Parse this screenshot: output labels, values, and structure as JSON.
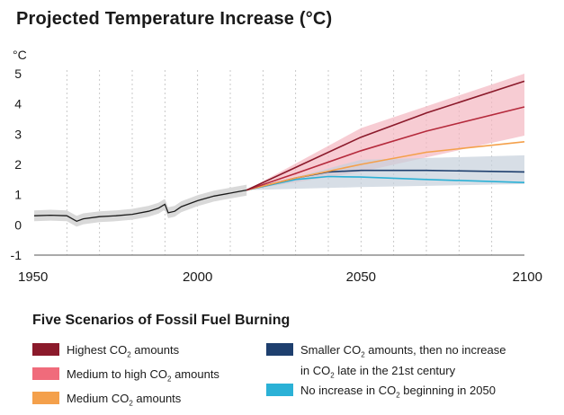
{
  "chart_data": {
    "type": "line",
    "title": "Projected Temperature Increase (°C)",
    "y_unit_label": "°C",
    "xlim": [
      1950,
      2100
    ],
    "ylim": [
      -1,
      5
    ],
    "x_ticks": [
      1950,
      2000,
      2050,
      2100
    ],
    "y_ticks": [
      -1,
      0,
      1,
      2,
      3,
      4,
      5
    ],
    "grid": "vertical-dashed",
    "historical": {
      "x": [
        1950,
        1955,
        1960,
        1963,
        1965,
        1970,
        1975,
        1980,
        1985,
        1988,
        1990,
        1991,
        1993,
        1995,
        2000,
        2005,
        2010,
        2015
      ],
      "y": [
        0.3,
        0.32,
        0.3,
        0.12,
        0.2,
        0.27,
        0.3,
        0.35,
        0.45,
        0.55,
        0.68,
        0.4,
        0.45,
        0.6,
        0.8,
        0.95,
        1.05,
        1.15
      ],
      "band": 0.18
    },
    "series": [
      {
        "name": "Highest CO2 amounts",
        "color": "#8b1a2b",
        "x": [
          2015,
          2030,
          2050,
          2070,
          2100
        ],
        "y": [
          1.15,
          1.9,
          2.9,
          3.7,
          4.75
        ]
      },
      {
        "name": "Medium to high CO2 amounts",
        "color": "#b52a3c",
        "x": [
          2015,
          2030,
          2050,
          2070,
          2100
        ],
        "y": [
          1.15,
          1.7,
          2.45,
          3.1,
          3.9
        ]
      },
      {
        "name": "Medium CO2 amounts",
        "color": "#f4a04b",
        "x": [
          2015,
          2030,
          2050,
          2070,
          2100
        ],
        "y": [
          1.15,
          1.55,
          2.0,
          2.4,
          2.75
        ]
      },
      {
        "name": "Smaller CO2 amounts, then no increase in CO2 late in the 21st century",
        "color": "#1e3f6e",
        "x": [
          2015,
          2030,
          2040,
          2050,
          2070,
          2100
        ],
        "y": [
          1.15,
          1.55,
          1.75,
          1.8,
          1.8,
          1.75
        ]
      },
      {
        "name": "No increase in CO2 beginning in 2050",
        "color": "#2bb1d6",
        "x": [
          2015,
          2030,
          2040,
          2050,
          2070,
          2100
        ],
        "y": [
          1.15,
          1.5,
          1.6,
          1.58,
          1.5,
          1.4
        ]
      }
    ],
    "bands": [
      {
        "color": "#f4b6c0",
        "x": [
          2015,
          2050,
          2100
        ],
        "lower": [
          1.15,
          1.75,
          2.95
        ],
        "upper": [
          1.15,
          3.2,
          5.0
        ]
      },
      {
        "color": "#c6d0dc",
        "x": [
          2015,
          2050,
          2100
        ],
        "lower": [
          1.15,
          1.25,
          1.35
        ],
        "upper": [
          1.15,
          2.15,
          2.3
        ]
      }
    ]
  },
  "legend": {
    "title": "Five Scenarios of Fossil Fuel Burning",
    "items": [
      {
        "pre": "Highest CO",
        "sub": "2",
        "post": " amounts",
        "post2": "",
        "post3": "",
        "color": "#8b1a2b"
      },
      {
        "pre": "Medium to high CO",
        "sub": "2",
        "post": " amounts",
        "post2": "",
        "post3": "",
        "color": "#f06b7b"
      },
      {
        "pre": "Medium CO",
        "sub": "2",
        "post": " amounts",
        "post2": "",
        "post3": "",
        "color": "#f4a04b"
      },
      {
        "pre": "Smaller CO",
        "sub": "2",
        "post": " amounts, then no increase",
        "post2": "in CO",
        "post3": " late in the 21st century",
        "color": "#1e3f6e"
      },
      {
        "pre": "No increase in CO",
        "sub": "2",
        "post": " beginning in 2050",
        "post2": "",
        "post3": "",
        "color": "#2bb1d6"
      }
    ]
  }
}
